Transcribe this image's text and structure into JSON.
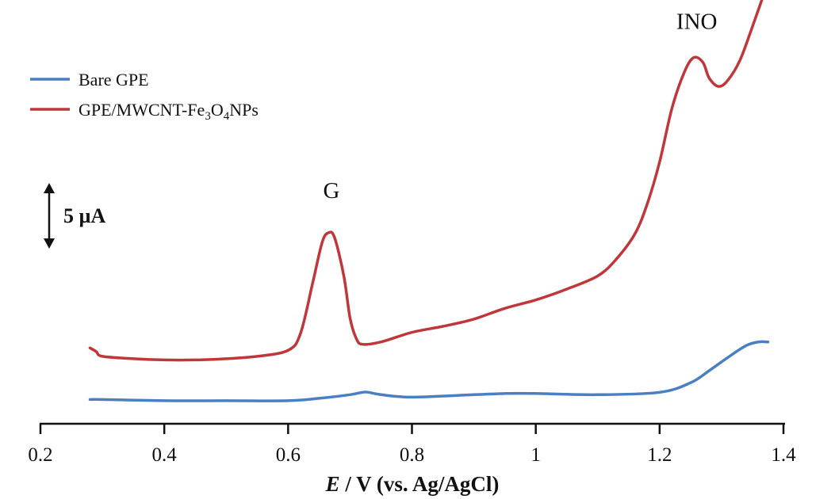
{
  "chart_data": {
    "type": "line",
    "xlabel_italic": "E",
    "xlabel_rest": " / V (vs. Ag/AgCl)",
    "xlim": [
      0.2,
      1.4
    ],
    "xticks": [
      0.2,
      0.4,
      0.6,
      0.8,
      1.0,
      1.2,
      1.4
    ],
    "xtick_labels": [
      "0.2",
      "0.4",
      "0.6",
      "0.8",
      "1",
      "1.2",
      "1.4"
    ],
    "y_unit": "µA",
    "ylim": [
      0,
      34
    ],
    "grid": false,
    "legend_position": "top-left",
    "scale_bar": {
      "value": 5,
      "label": "5 µA"
    },
    "peak_labels": [
      {
        "text": "G",
        "x": 0.67,
        "y": 17.5
      },
      {
        "text": "INO",
        "x": 1.26,
        "y": 31.6
      }
    ],
    "series": [
      {
        "name": "Bare GPE",
        "color": "#4a7fc1",
        "points": [
          [
            0.28,
            0.7
          ],
          [
            0.3,
            0.7
          ],
          [
            0.4,
            0.6
          ],
          [
            0.5,
            0.6
          ],
          [
            0.6,
            0.6
          ],
          [
            0.65,
            0.8
          ],
          [
            0.7,
            1.1
          ],
          [
            0.72,
            1.3
          ],
          [
            0.73,
            1.3
          ],
          [
            0.75,
            1.1
          ],
          [
            0.8,
            0.9
          ],
          [
            0.9,
            1.1
          ],
          [
            0.95,
            1.2
          ],
          [
            1.0,
            1.2
          ],
          [
            1.1,
            1.1
          ],
          [
            1.2,
            1.3
          ],
          [
            1.25,
            2.1
          ],
          [
            1.28,
            3.1
          ],
          [
            1.31,
            4.2
          ],
          [
            1.34,
            5.2
          ],
          [
            1.36,
            5.5
          ],
          [
            1.375,
            5.5
          ]
        ]
      },
      {
        "name": "GPE/MWCNT-Fe₃O₄NPs",
        "color": "#c0373b",
        "points": [
          [
            0.28,
            5.0
          ],
          [
            0.29,
            4.7
          ],
          [
            0.3,
            4.3
          ],
          [
            0.35,
            4.1
          ],
          [
            0.4,
            4.0
          ],
          [
            0.45,
            4.0
          ],
          [
            0.5,
            4.1
          ],
          [
            0.55,
            4.3
          ],
          [
            0.6,
            4.8
          ],
          [
            0.62,
            6.2
          ],
          [
            0.64,
            10.5
          ],
          [
            0.655,
            13.8
          ],
          [
            0.665,
            14.6
          ],
          [
            0.675,
            14.2
          ],
          [
            0.69,
            11.0
          ],
          [
            0.7,
            7.5
          ],
          [
            0.71,
            5.8
          ],
          [
            0.72,
            5.3
          ],
          [
            0.75,
            5.5
          ],
          [
            0.8,
            6.3
          ],
          [
            0.85,
            6.8
          ],
          [
            0.9,
            7.4
          ],
          [
            0.95,
            8.3
          ],
          [
            1.0,
            9.0
          ],
          [
            1.05,
            9.9
          ],
          [
            1.1,
            11.0
          ],
          [
            1.13,
            12.4
          ],
          [
            1.16,
            14.5
          ],
          [
            1.18,
            17.0
          ],
          [
            1.2,
            20.5
          ],
          [
            1.22,
            25.0
          ],
          [
            1.24,
            28.0
          ],
          [
            1.255,
            29.2
          ],
          [
            1.27,
            28.8
          ],
          [
            1.28,
            27.5
          ],
          [
            1.295,
            26.8
          ],
          [
            1.31,
            27.3
          ],
          [
            1.33,
            29.0
          ],
          [
            1.35,
            31.8
          ],
          [
            1.365,
            34.0
          ],
          [
            1.375,
            35.4
          ]
        ]
      }
    ]
  }
}
